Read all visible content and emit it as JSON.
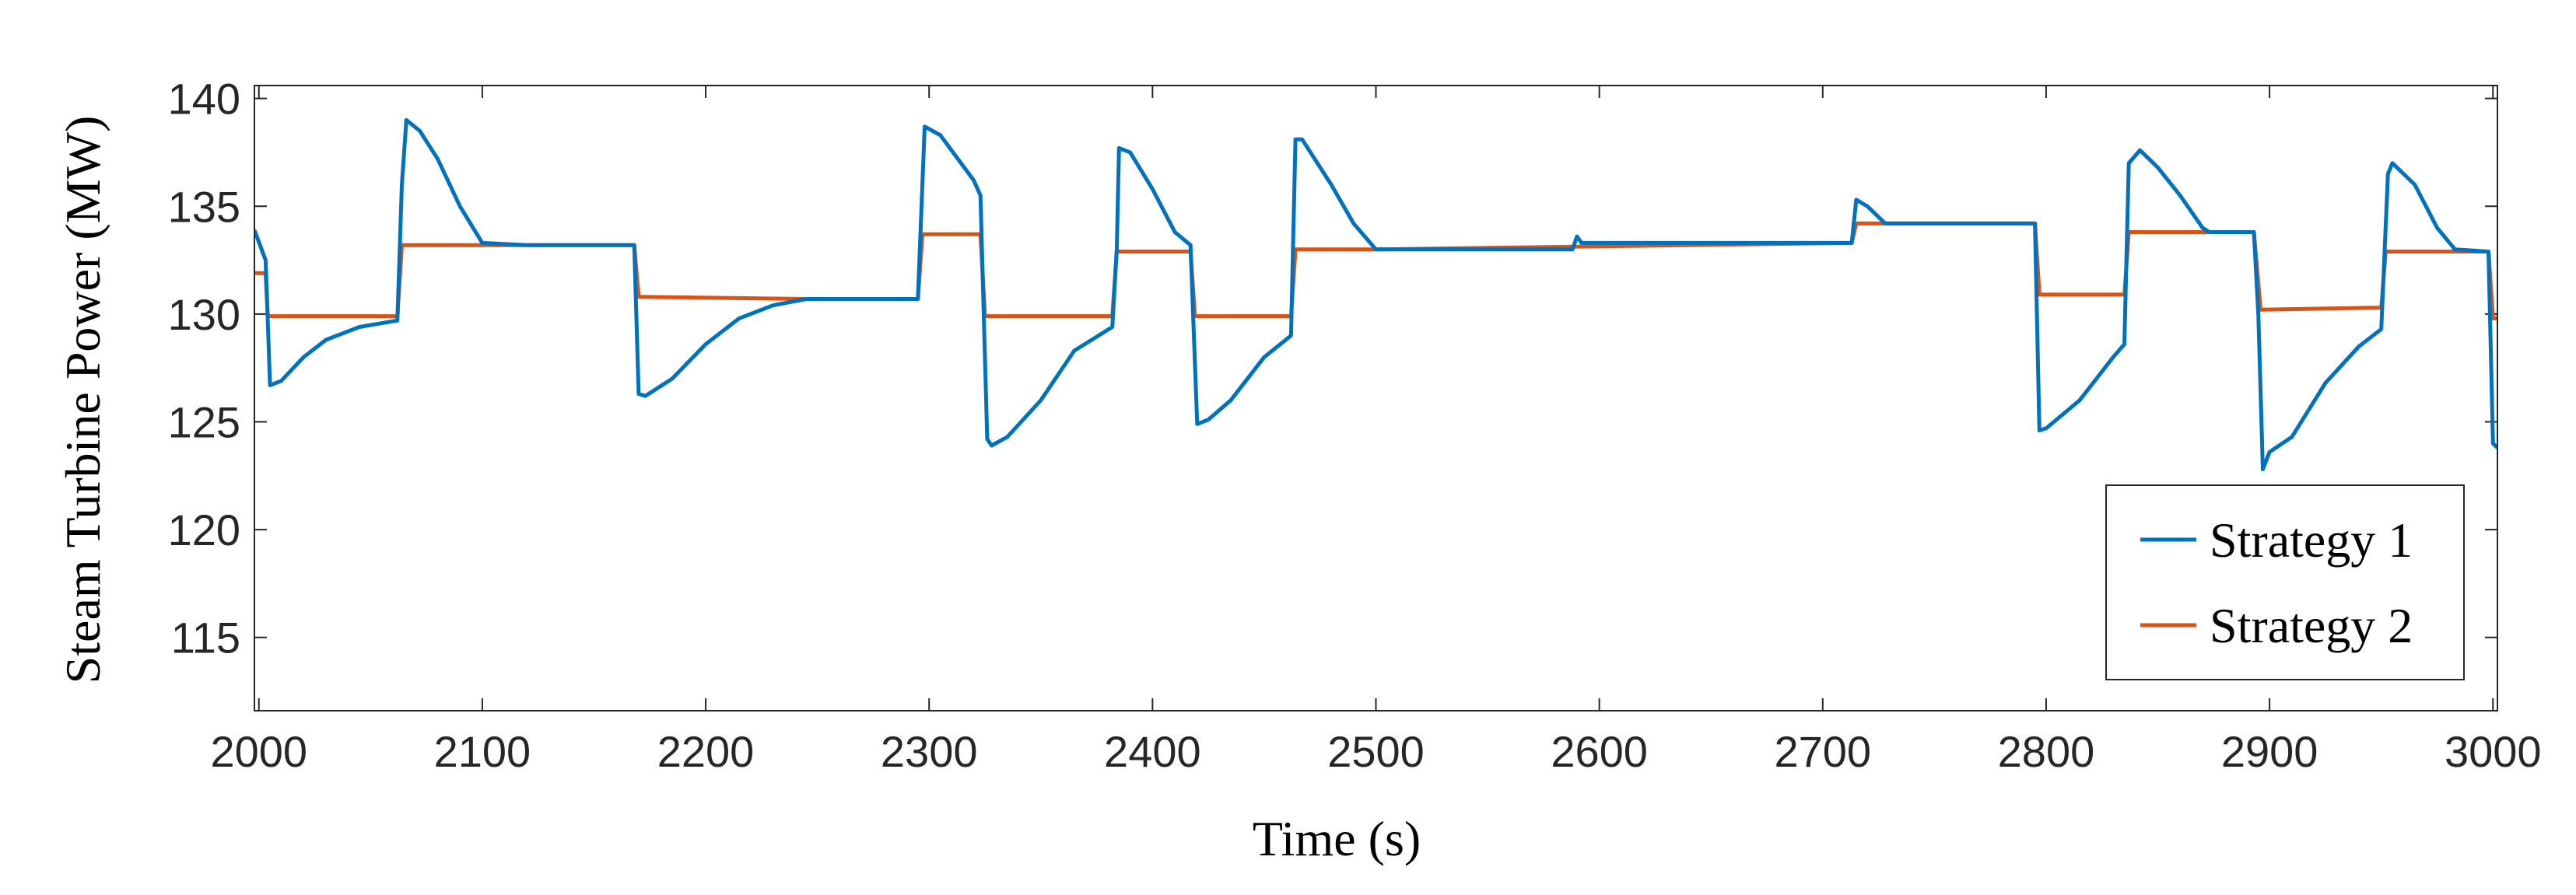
{
  "chart_data": {
    "type": "line",
    "xlabel": "Time (s)",
    "ylabel": "Steam Turbine Power (MW)",
    "xlim": [
      1998,
      3002
    ],
    "ylim": [
      111.6,
      140.6
    ],
    "xticks": [
      2000,
      2100,
      2200,
      2300,
      2400,
      2500,
      2600,
      2700,
      2800,
      2900,
      3000
    ],
    "yticks": [
      115,
      120,
      125,
      130,
      135,
      140
    ],
    "grid": false,
    "legend": "lower right",
    "series": [
      {
        "name": "Strategy 1",
        "color": "#0072bd",
        "x": [
          1998,
          2003,
          2005,
          2010,
          2020,
          2030,
          2045,
          2062,
          2064,
          2066,
          2072,
          2080,
          2090,
          2100,
          2120,
          2168,
          2170,
          2173,
          2185,
          2200,
          2215,
          2230,
          2245,
          2295,
          2298,
          2305,
          2320,
          2323,
          2326,
          2328,
          2335,
          2350,
          2365,
          2382,
          2384,
          2385,
          2390,
          2400,
          2410,
          2417,
          2420,
          2425,
          2435,
          2450,
          2462,
          2464,
          2467,
          2480,
          2490,
          2500,
          2588,
          2590,
          2592,
          2713,
          2715,
          2720,
          2728,
          2795,
          2797,
          2800,
          2815,
          2830,
          2835,
          2837,
          2842,
          2850,
          2860,
          2870,
          2873,
          2893,
          2895,
          2897,
          2900,
          2910,
          2925,
          2940,
          2950,
          2953,
          2955,
          2965,
          2975,
          2983,
          2998,
          3000,
          3002
        ],
        "values": [
          133.9,
          132.5,
          126.7,
          126.9,
          128.0,
          128.8,
          129.4,
          129.7,
          136,
          139,
          138.5,
          137.2,
          135,
          133.3,
          133.2,
          133.2,
          126.3,
          126.2,
          127.0,
          128.6,
          129.8,
          130.4,
          130.7,
          130.7,
          138.7,
          138.3,
          136.2,
          135.5,
          124.2,
          123.9,
          124.3,
          126.0,
          128.3,
          129.4,
          133,
          137.7,
          137.5,
          135.8,
          133.8,
          133.2,
          124.9,
          125.1,
          126.0,
          128.0,
          129.0,
          138.1,
          138.1,
          136.0,
          134.2,
          133.0,
          133.0,
          133.6,
          133.3,
          133.3,
          135.3,
          135.0,
          134.2,
          134.2,
          124.6,
          124.7,
          126.0,
          128.0,
          128.6,
          137,
          137.6,
          136.8,
          135.5,
          134,
          133.8,
          133.8,
          130,
          122.8,
          123.6,
          124.3,
          126.8,
          128.5,
          129.3,
          136.5,
          137.0,
          136.0,
          134,
          133.0,
          132.9,
          124,
          123.8
        ]
      },
      {
        "name": "Strategy 2",
        "color": "#d95319",
        "x": [
          1998,
          2003,
          2004,
          2062,
          2064,
          2100,
          2168,
          2170,
          2245,
          2295,
          2297,
          2323,
          2325,
          2382,
          2384,
          2417,
          2419,
          2462,
          2464,
          2500,
          2713,
          2715,
          2795,
          2797,
          2835,
          2837,
          2893,
          2896,
          2950,
          2952,
          2998,
          3000,
          3002
        ],
        "values": [
          131.9,
          131.9,
          129.9,
          129.9,
          133.2,
          133.2,
          133.2,
          130.8,
          130.7,
          130.7,
          133.7,
          133.7,
          129.9,
          129.9,
          132.9,
          132.9,
          129.9,
          129.9,
          133.0,
          133.0,
          133.3,
          134.2,
          134.2,
          130.9,
          130.9,
          133.8,
          133.8,
          130.2,
          130.3,
          132.9,
          132.9,
          129.8,
          129.8
        ]
      }
    ]
  }
}
